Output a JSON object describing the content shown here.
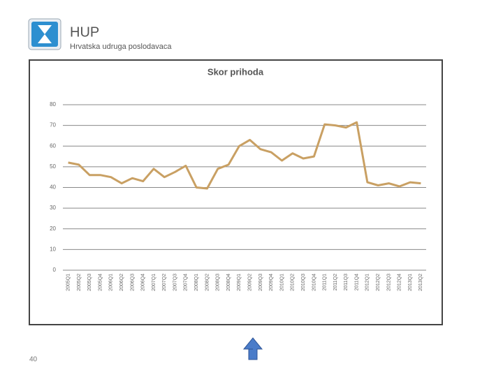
{
  "header": {
    "title": "HUP",
    "subtitle": "Hrvatska udruga poslodavaca"
  },
  "page_number": "40",
  "chart_data": {
    "type": "line",
    "title": "Skor prihoda",
    "categories": [
      "2005Q1",
      "2005Q2",
      "2005Q3",
      "2005Q4",
      "2006Q1",
      "2006Q2",
      "2006Q3",
      "2006Q4",
      "2007Q1",
      "2007Q2",
      "2007Q3",
      "2007Q4",
      "2008Q1",
      "2008Q2",
      "2008Q3",
      "2008Q4",
      "2009Q1",
      "2009Q2",
      "2009Q3",
      "2009Q4",
      "2010Q1",
      "2010Q2",
      "2010Q3",
      "2010Q4",
      "2011Q1",
      "2011Q2",
      "2011Q3",
      "2011Q4",
      "2012Q1",
      "2012Q2",
      "2012Q3",
      "2012Q4",
      "2013Q1",
      "2013Q2"
    ],
    "values": [
      52,
      51,
      46,
      46,
      45,
      42,
      44.5,
      43,
      49,
      45,
      47.5,
      50.5,
      40,
      39.5,
      49,
      51,
      60,
      63,
      58.5,
      57,
      53,
      56.5,
      54,
      55,
      70.5,
      70,
      69,
      71.5,
      42.5,
      41,
      42,
      40.5,
      42.5,
      42
    ],
    "color": "#c9a063",
    "ylim": [
      0,
      80
    ],
    "yticks": [
      0,
      10,
      20,
      30,
      40,
      50,
      60,
      70,
      80
    ],
    "grid": true
  }
}
